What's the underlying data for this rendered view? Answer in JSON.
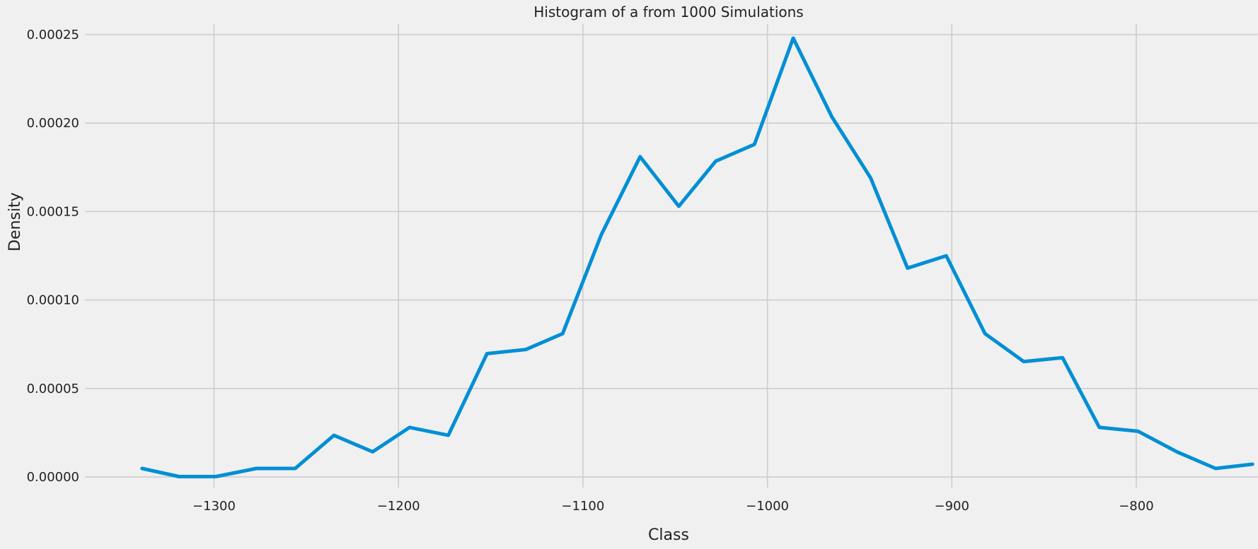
{
  "chart_data": {
    "type": "line",
    "title": "Histogram of a from 1000 Simulations",
    "xlabel": "Class",
    "ylabel": "Density",
    "xlim": [
      -1370,
      -734
    ],
    "ylim": [
      -6e-06,
      0.00026
    ],
    "xticks": [
      -1300,
      -1200,
      -1100,
      -1000,
      -900,
      -800
    ],
    "xtick_labels": [
      "−1300",
      "−1200",
      "−1100",
      "−1000",
      "−900",
      "−800"
    ],
    "yticks": [
      0,
      5e-05,
      0.0001,
      0.00015,
      0.0002,
      0.00025
    ],
    "ytick_labels": [
      "0.00000",
      "0.00005",
      "0.00010",
      "0.00015",
      "0.00020",
      "0.00025"
    ],
    "grid": true,
    "series": [
      {
        "color": "#008fd5",
        "x": [
          -1339,
          -1319,
          -1299,
          -1277,
          -1256,
          -1235,
          -1214,
          -1194,
          -1173,
          -1152,
          -1131,
          -1111,
          -1090,
          -1069,
          -1048,
          -1028,
          -1007,
          -986,
          -965,
          -944,
          -924,
          -903,
          -882,
          -861,
          -840,
          -820,
          -799,
          -778,
          -757,
          -737
        ],
        "y": [
          4.8e-06,
          2e-07,
          2e-07,
          4.8e-06,
          4.8e-06,
          2.35e-05,
          1.42e-05,
          2.8e-05,
          2.35e-05,
          6.97e-05,
          7.2e-05,
          8.1e-05,
          0.000137,
          0.000181,
          0.000153,
          0.0001785,
          0.000188,
          0.000248,
          0.0002035,
          0.000169,
          0.000118,
          0.000125,
          8.1e-05,
          6.52e-05,
          6.74e-05,
          2.8e-05,
          2.58e-05,
          1.42e-05,
          4.8e-06,
          7.2e-06
        ]
      }
    ]
  }
}
